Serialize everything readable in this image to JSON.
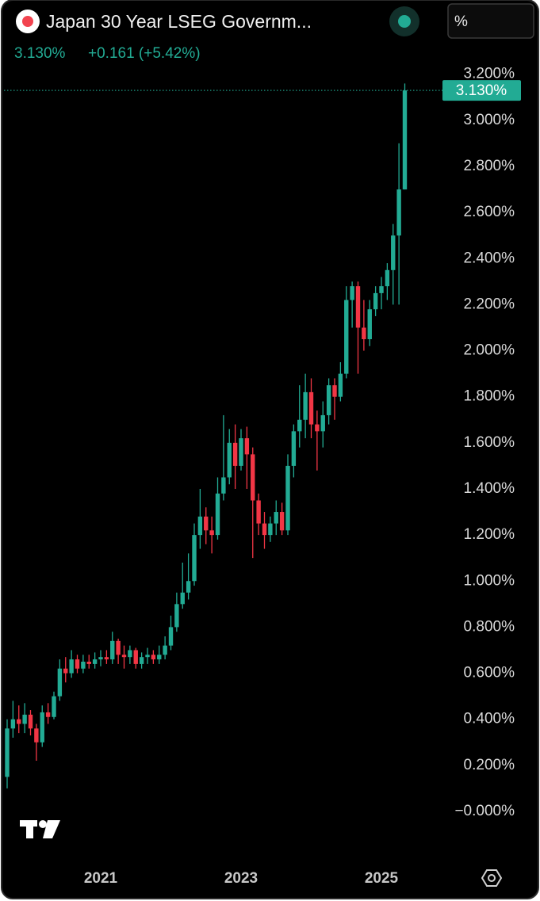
{
  "chart_data": {
    "type": "candlestick",
    "title": "Japan 30 Year LSEG Governm...",
    "price_label": "3.130%",
    "change_label": "+0.161 (+5.42%)",
    "unit_button": "%",
    "last_label": "3.130%",
    "up_color": "#22ab94",
    "down_color": "#f23645",
    "categories": [
      null,
      null,
      null,
      null,
      null,
      null,
      null,
      null,
      null,
      null,
      null,
      null,
      null,
      null,
      null,
      null,
      "2021",
      null,
      null,
      null,
      null,
      null,
      null,
      null,
      null,
      null,
      null,
      null,
      null,
      null,
      null,
      null,
      null,
      null,
      null,
      null,
      null,
      null,
      null,
      null,
      "2023",
      null,
      null,
      null,
      null,
      null,
      null,
      null,
      null,
      null,
      null,
      null,
      null,
      null,
      null,
      null,
      null,
      null,
      null,
      null,
      null,
      null,
      null,
      null,
      "2025",
      null,
      null,
      null,
      null
    ],
    "open": [
      0.15,
      0.36,
      0.4,
      0.38,
      0.42,
      0.36,
      0.3,
      0.43,
      0.41,
      0.5,
      0.62,
      0.6,
      0.66,
      0.62,
      0.65,
      0.64,
      0.66,
      0.67,
      0.66,
      0.74,
      0.68,
      0.67,
      0.7,
      0.64,
      0.67,
      0.68,
      0.66,
      0.68,
      0.72,
      0.8,
      0.9,
      0.95,
      1.0,
      1.2,
      1.28,
      1.22,
      1.2,
      1.38,
      1.45,
      1.6,
      1.5,
      1.62,
      1.55,
      1.35,
      1.25,
      1.2,
      1.25,
      1.3,
      1.22,
      1.5,
      1.65,
      1.7,
      1.82,
      1.68,
      1.65,
      1.72,
      1.85,
      1.8,
      1.9,
      2.22,
      2.28,
      2.1,
      2.05,
      2.18,
      2.25,
      2.28,
      2.35,
      2.5,
      2.7
    ],
    "high": [
      0.4,
      0.48,
      0.46,
      0.47,
      0.44,
      0.38,
      0.46,
      0.47,
      0.52,
      0.66,
      0.67,
      0.7,
      0.68,
      0.68,
      0.68,
      0.69,
      0.7,
      0.7,
      0.78,
      0.75,
      0.72,
      0.72,
      0.71,
      0.69,
      0.71,
      0.7,
      0.72,
      0.76,
      0.85,
      0.95,
      1.08,
      1.12,
      1.25,
      1.4,
      1.32,
      1.28,
      1.45,
      1.72,
      1.66,
      1.68,
      1.66,
      1.67,
      1.58,
      1.38,
      1.3,
      1.28,
      1.35,
      1.34,
      1.55,
      1.68,
      1.85,
      1.9,
      1.88,
      1.74,
      1.78,
      1.88,
      1.88,
      1.95,
      2.28,
      2.3,
      2.3,
      2.22,
      2.22,
      2.28,
      2.32,
      2.38,
      2.55,
      2.9,
      3.16
    ],
    "low": [
      0.1,
      0.32,
      0.34,
      0.34,
      0.33,
      0.22,
      0.28,
      0.38,
      0.4,
      0.48,
      0.56,
      0.58,
      0.6,
      0.6,
      0.62,
      0.62,
      0.63,
      0.64,
      0.64,
      0.64,
      0.62,
      0.64,
      0.62,
      0.62,
      0.64,
      0.64,
      0.64,
      0.66,
      0.7,
      0.78,
      0.88,
      0.92,
      0.98,
      1.14,
      1.16,
      1.12,
      1.18,
      1.35,
      1.42,
      1.4,
      1.48,
      1.4,
      1.1,
      1.2,
      1.14,
      1.17,
      1.2,
      1.2,
      1.2,
      1.45,
      1.58,
      1.62,
      1.62,
      1.48,
      1.58,
      1.68,
      1.7,
      1.78,
      1.88,
      2.1,
      1.9,
      2.0,
      2.02,
      2.15,
      2.18,
      2.22,
      2.2,
      2.2,
      2.7
    ],
    "close": [
      0.36,
      0.4,
      0.38,
      0.42,
      0.36,
      0.3,
      0.43,
      0.41,
      0.5,
      0.62,
      0.6,
      0.66,
      0.62,
      0.65,
      0.64,
      0.66,
      0.67,
      0.66,
      0.74,
      0.68,
      0.67,
      0.7,
      0.64,
      0.67,
      0.68,
      0.66,
      0.68,
      0.72,
      0.8,
      0.9,
      0.95,
      1.0,
      1.2,
      1.28,
      1.22,
      1.2,
      1.38,
      1.45,
      1.6,
      1.5,
      1.62,
      1.55,
      1.35,
      1.25,
      1.2,
      1.25,
      1.3,
      1.22,
      1.5,
      1.65,
      1.7,
      1.82,
      1.68,
      1.65,
      1.72,
      1.85,
      1.8,
      1.9,
      2.22,
      2.28,
      2.1,
      2.05,
      2.18,
      2.25,
      2.28,
      2.35,
      2.5,
      2.7,
      3.13
    ],
    "ylim": [
      -0.21,
      3.23
    ],
    "yticks": [
      {
        "value": 0,
        "label": "−0.000%"
      },
      {
        "value": 0.2,
        "label": "0.200%"
      },
      {
        "value": 0.4,
        "label": "0.400%"
      },
      {
        "value": 0.6,
        "label": "0.600%"
      },
      {
        "value": 0.8,
        "label": "0.800%"
      },
      {
        "value": 1.0,
        "label": "1.000%"
      },
      {
        "value": 1.2,
        "label": "1.200%"
      },
      {
        "value": 1.4,
        "label": "1.400%"
      },
      {
        "value": 1.6,
        "label": "1.600%"
      },
      {
        "value": 1.8,
        "label": "1.800%"
      },
      {
        "value": 2.0,
        "label": "2.000%"
      },
      {
        "value": 2.2,
        "label": "2.200%"
      },
      {
        "value": 2.4,
        "label": "2.400%"
      },
      {
        "value": 2.6,
        "label": "2.600%"
      },
      {
        "value": 2.8,
        "label": "2.800%"
      },
      {
        "value": 3.0,
        "label": "3.000%"
      },
      {
        "value": 3.2,
        "label": "3.200%"
      }
    ],
    "grid": false
  }
}
